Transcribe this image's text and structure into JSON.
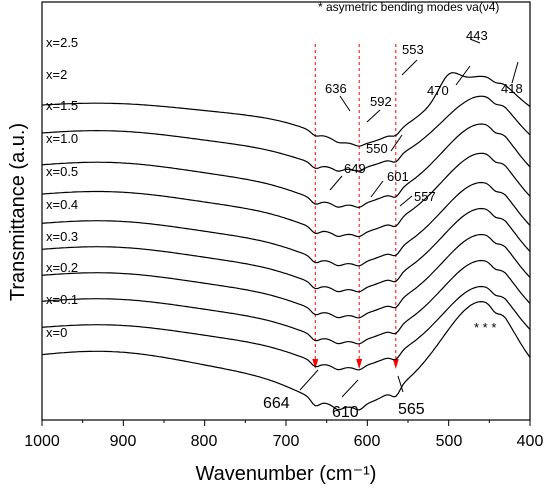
{
  "chart_data": {
    "type": "line",
    "title": "",
    "xlabel": "Wavenumber (cm⁻¹)",
    "ylabel": "Transmittance (a.u.)",
    "xlim": [
      1000,
      400
    ],
    "x_ticks": [
      "1000",
      "900",
      "800",
      "700",
      "600",
      "500",
      "400"
    ],
    "y_ticks": [],
    "note": "* asymetric bending modes νa(ν4)",
    "series": [
      {
        "name": "x=2.5",
        "label": "x=2.5",
        "offset": 9.0,
        "amp": 0.7,
        "style": "top"
      },
      {
        "name": "x=2",
        "label": "x=2",
        "offset": 8.1,
        "amp": 0.9,
        "style": "mid"
      },
      {
        "name": "x=1.5",
        "label": "x=1.5",
        "offset": 7.1,
        "amp": 1.0,
        "style": "mid"
      },
      {
        "name": "x=1.0",
        "label": "x=1.0",
        "offset": 6.2,
        "amp": 1.0,
        "style": "mid"
      },
      {
        "name": "x=0.5",
        "label": "x=0.5",
        "offset": 5.3,
        "amp": 1.0,
        "style": "mid"
      },
      {
        "name": "x=0.4",
        "label": "x=0.4",
        "offset": 4.5,
        "amp": 1.0,
        "style": "mid"
      },
      {
        "name": "x=0.3",
        "label": "x=0.3",
        "offset": 3.7,
        "amp": 1.0,
        "style": "mid"
      },
      {
        "name": "x=0.2",
        "label": "x=0.2",
        "offset": 2.9,
        "amp": 1.0,
        "style": "mid"
      },
      {
        "name": "x=0.1",
        "label": "x=0.1",
        "offset": 2.1,
        "amp": 1.0,
        "style": "mid"
      },
      {
        "name": "x=0",
        "label": "x=0",
        "offset": 1.2,
        "amp": 1.3,
        "style": "bottom"
      }
    ],
    "reference_lines": [
      664,
      610,
      565
    ],
    "annotations": [
      {
        "text": "553",
        "x": 553
      },
      {
        "text": "443",
        "x": 443
      },
      {
        "text": "470",
        "x": 470
      },
      {
        "text": "418",
        "x": 418
      },
      {
        "text": "636",
        "x": 636
      },
      {
        "text": "592",
        "x": 592
      },
      {
        "text": "550",
        "x": 550
      },
      {
        "text": "649",
        "x": 649
      },
      {
        "text": "601",
        "x": 601
      },
      {
        "text": "557",
        "x": 557
      },
      {
        "text": "664",
        "x": 664
      },
      {
        "text": "610",
        "x": 610
      },
      {
        "text": "565",
        "x": 565
      },
      {
        "text": "* * *",
        "x": 455
      }
    ],
    "legend": "none",
    "grid": false,
    "colors": {
      "line": "#000000",
      "reference": "#ff0000"
    }
  }
}
